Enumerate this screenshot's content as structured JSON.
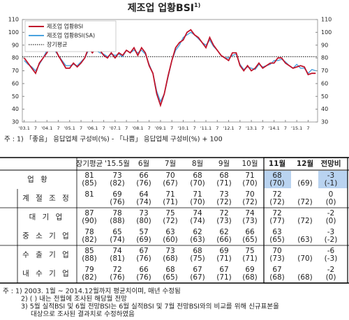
{
  "chart_data": {
    "type": "line",
    "title": "제조업 업황BSI",
    "title_note": "1)",
    "categories": [
      "'03.1",
      null,
      null,
      "7",
      null,
      null,
      "'04.1",
      null,
      null,
      "7",
      null,
      null,
      "'05.1",
      null,
      null,
      "7",
      null,
      null,
      "'06.1",
      null,
      null,
      "7",
      null,
      null,
      "'07.1",
      null,
      null,
      "7",
      null,
      null,
      "'08.1",
      null,
      null,
      "7",
      null,
      null,
      "'09.1",
      null,
      null,
      "7",
      null,
      null,
      "'10.1",
      null,
      null,
      "7",
      null,
      null,
      "'11.1",
      null,
      null,
      "7",
      null,
      null,
      "'12.1",
      null,
      null,
      "7",
      null,
      null,
      "'13.1",
      null,
      null,
      "7",
      null,
      null,
      "'14.1",
      null,
      null,
      "7",
      null,
      null,
      "'15.1",
      null,
      null,
      "7",
      null,
      null
    ],
    "series": [
      {
        "name": "제조업 업황BSI",
        "color": "#c0142b",
        "values": [
          80,
          76,
          72,
          68,
          76,
          80,
          84,
          90,
          88,
          82,
          77,
          72,
          72,
          76,
          73,
          76,
          80,
          88,
          84,
          88,
          86,
          82,
          80,
          84,
          80,
          84,
          82,
          86,
          84,
          88,
          82,
          88,
          84,
          74,
          68,
          52,
          43,
          52,
          66,
          78,
          88,
          92,
          94,
          100,
          102,
          98,
          96,
          92,
          88,
          96,
          90,
          86,
          82,
          80,
          78,
          84,
          84,
          74,
          70,
          74,
          70,
          72,
          76,
          72,
          74,
          76,
          76,
          80,
          80,
          76,
          74,
          72,
          73,
          74,
          73,
          67,
          68,
          68
        ]
      },
      {
        "name": "제조업 업황BSI(SA)",
        "color": "#4aa3df",
        "values": [
          78,
          75,
          73,
          70,
          75,
          80,
          86,
          88,
          86,
          82,
          78,
          74,
          74,
          75,
          74,
          77,
          80,
          86,
          86,
          86,
          84,
          83,
          81,
          83,
          82,
          83,
          81,
          86,
          84,
          86,
          84,
          86,
          83,
          75,
          68,
          54,
          46,
          52,
          65,
          78,
          86,
          90,
          96,
          98,
          100,
          98,
          95,
          92,
          90,
          94,
          89,
          86,
          82,
          80,
          80,
          82,
          83,
          75,
          71,
          73,
          72,
          71,
          75,
          73,
          74,
          75,
          78,
          78,
          79,
          77,
          74,
          72,
          75,
          72,
          72,
          68,
          71,
          70
        ]
      }
    ],
    "reference_line": {
      "name": "장기평균",
      "value": 81,
      "color": "#000000"
    },
    "ylim": [
      30,
      110
    ],
    "yticks": [
      30,
      40,
      50,
      60,
      70,
      80,
      90,
      100,
      110
    ],
    "y2lim": [
      30,
      110
    ],
    "y2ticks": [
      30,
      40,
      50,
      60,
      70,
      80,
      90,
      100,
      110
    ],
    "grid": false,
    "legend": "upper left",
    "footnote": "주 : 1) 「좋음」 응답업체 구성비(%) - 「나쁨」 응답업체 구성비(%) + 100"
  },
  "table": {
    "columns": [
      "장기평균",
      "'15.5월",
      "6월",
      "7월",
      "8월",
      "9월",
      "10월",
      "11월",
      "12월",
      "전망비"
    ],
    "rows": [
      {
        "label": "업 황",
        "cells": [
          [
            "81",
            "(85)"
          ],
          [
            "73",
            "(82)"
          ],
          [
            "66",
            "(76)"
          ],
          [
            "70",
            "(67)"
          ],
          [
            "68",
            "(70)"
          ],
          [
            "68",
            "(71)"
          ],
          [
            "71",
            "(70)"
          ],
          [
            "68",
            "(70)"
          ],
          [
            "(69)"
          ],
          [
            "-3",
            "(-1)"
          ]
        ]
      },
      {
        "label": "계 절 조 정",
        "cells": [
          [
            "81"
          ],
          [
            "69",
            "(76)"
          ],
          [
            "64",
            "(74)"
          ],
          [
            "71",
            "(71)"
          ],
          [
            "71",
            "(70)"
          ],
          [
            "73",
            "(72)"
          ],
          [
            "70",
            "(72)"
          ],
          [
            "72",
            "(72)"
          ],
          [
            "(72)"
          ],
          [
            "0",
            "(0)"
          ]
        ]
      },
      {
        "label": "대 기 업",
        "cells": [
          [
            "87",
            "(90)"
          ],
          [
            "78",
            "(88)"
          ],
          [
            "73",
            "(80)"
          ],
          [
            "75",
            "(72)"
          ],
          [
            "74",
            "(74)"
          ],
          [
            "72",
            "(73)"
          ],
          [
            "74",
            "(73)"
          ],
          [
            "72",
            "(77)"
          ],
          [
            "(72)"
          ],
          [
            "-2",
            "(0)"
          ]
        ]
      },
      {
        "label": "중 소 기 업",
        "cells": [
          [
            "78",
            "(82)"
          ],
          [
            "65",
            "(74)"
          ],
          [
            "57",
            "(69)"
          ],
          [
            "63",
            "(60)"
          ],
          [
            "62",
            "(63)"
          ],
          [
            "62",
            "(66)"
          ],
          [
            "66",
            "(65)"
          ],
          [
            "63",
            "(65)"
          ],
          [
            "(63)"
          ],
          [
            "-3",
            "(-2)"
          ]
        ]
      },
      {
        "label": "수 출 기 업",
        "cells": [
          [
            "85",
            "(88)"
          ],
          [
            "74",
            "(81)"
          ],
          [
            "67",
            "(76)"
          ],
          [
            "73",
            "(68)"
          ],
          [
            "68",
            "(75)"
          ],
          [
            "69",
            "(71)"
          ],
          [
            "75",
            "(71)"
          ],
          [
            "70",
            "(73)"
          ],
          [
            "(70)"
          ],
          [
            "-6",
            "(-3)"
          ]
        ]
      },
      {
        "label": "내 수 기 업",
        "cells": [
          [
            "79",
            "(82)"
          ],
          [
            "72",
            "(76)"
          ],
          [
            "66",
            "(76)"
          ],
          [
            "68",
            "(65)"
          ],
          [
            "67",
            "(67)"
          ],
          [
            "67",
            "(71)"
          ],
          [
            "69",
            "(68)"
          ],
          [
            "67",
            "(68)"
          ],
          [
            "(68)"
          ],
          [
            "-2",
            "(0)"
          ]
        ]
      }
    ],
    "notes": [
      "주 : 1) 2003. 1월 ~ 2014.12월까지 평균치이며, 매년 수정됨",
      "2) ( ) 내는 전월에 조사된 해당월 전망",
      "3) 5월 실적BSI 및 6월 전망BSI는 6월 실적BSI 및 7월 전망BSI와의 비교를 위해 신규표본을",
      "대상으로 조사된 결과치로 수정하였음"
    ]
  }
}
